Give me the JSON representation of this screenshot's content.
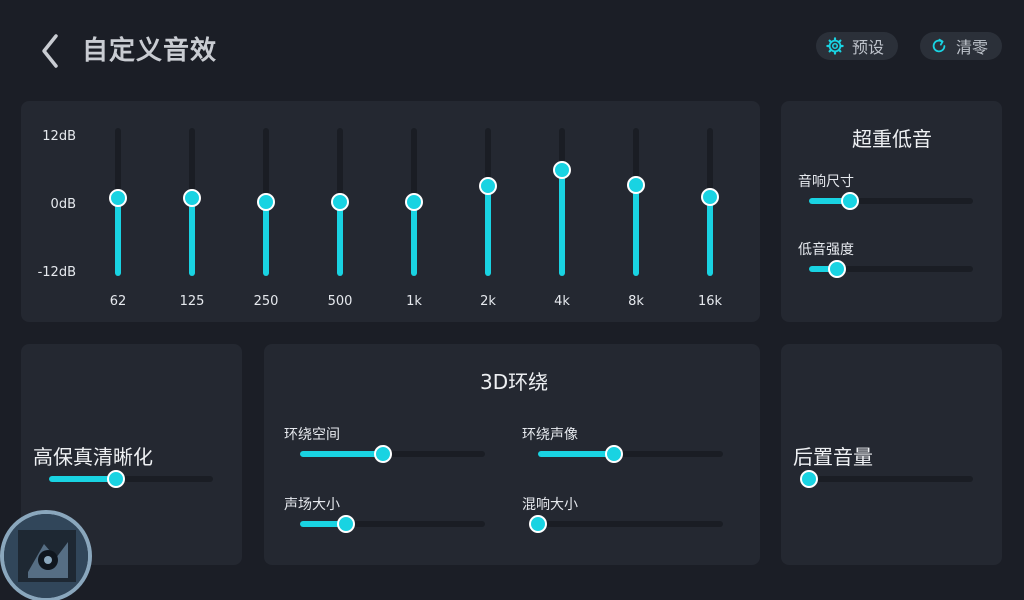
{
  "header": {
    "title": "自定义音效",
    "preset_label": "预设",
    "reset_label": "清零"
  },
  "equalizer": {
    "db_labels": {
      "top": "12dB",
      "mid": "0dB",
      "bottom": "-12dB"
    },
    "bands": [
      {
        "freq": "62",
        "gain": 0.6
      },
      {
        "freq": "125",
        "gain": 0.6
      },
      {
        "freq": "250",
        "gain": 0
      },
      {
        "freq": "500",
        "gain": 0
      },
      {
        "freq": "1k",
        "gain": 0
      },
      {
        "freq": "2k",
        "gain": 2.6
      },
      {
        "freq": "4k",
        "gain": 5.2
      },
      {
        "freq": "8k",
        "gain": 2.8
      },
      {
        "freq": "16k",
        "gain": 0.8
      }
    ]
  },
  "bass": {
    "title": "超重低音",
    "sliders": [
      {
        "label": "音响尺寸",
        "value": 0.25
      },
      {
        "label": "低音强度",
        "value": 0.17
      }
    ]
  },
  "hifi": {
    "title": "高保真清晰化",
    "value": 0.41
  },
  "surround": {
    "title": "3D环绕",
    "sliders": [
      {
        "label": "环绕空间",
        "value": 0.45
      },
      {
        "label": "环绕声像",
        "value": 0.41
      },
      {
        "label": "声场大小",
        "value": 0.25
      },
      {
        "label": "混响大小",
        "value": 0.0
      }
    ]
  },
  "rear": {
    "title": "后置音量",
    "value": 0.0
  },
  "colors": {
    "accent": "#19d3e2",
    "panel": "#242831",
    "background": "#1b1e26"
  }
}
